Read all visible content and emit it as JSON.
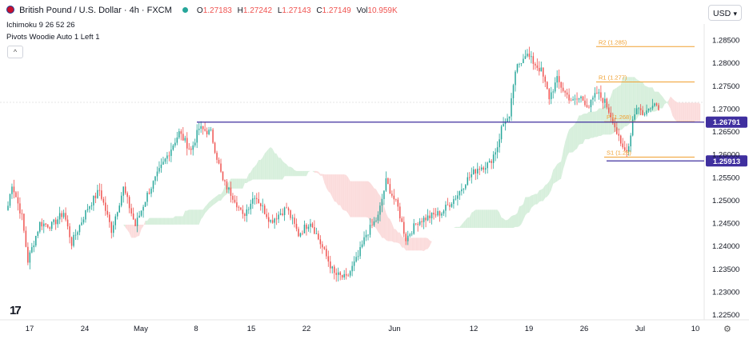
{
  "header": {
    "title": "British Pound / U.S. Dollar · 4h · FXCM",
    "ohlc": [
      {
        "k": "O",
        "v": "1.27183"
      },
      {
        "k": "H",
        "v": "1.27242"
      },
      {
        "k": "L",
        "v": "1.27143"
      },
      {
        "k": "C",
        "v": "1.27149"
      },
      {
        "k": "Vol",
        "v": "10.959K"
      }
    ]
  },
  "indicators": [
    "Ichimoku 9 26 52 26",
    "Pivots Woodie Auto 1 Left 1"
  ],
  "collapse_label": "^",
  "currency_label": "USD",
  "colors": {
    "up": "#26a69a",
    "down": "#ef5350",
    "horizontal_line": "#3f2f9f",
    "pivot": "#f0a030",
    "cloud_bull": "#d7efdc",
    "cloud_bear": "#fbdcdc"
  },
  "chart_data": {
    "type": "candlestick",
    "symbol": "GBPUSD",
    "timeframe": "4h",
    "x_ticks": [
      "17",
      "24",
      "May",
      "8",
      "15",
      "22",
      "Jun",
      "12",
      "19",
      "26",
      "Jul",
      "10"
    ],
    "y_ticks": [
      "1.28500",
      "1.28000",
      "1.27500",
      "1.27000",
      "1.26500",
      "1.26000",
      "1.25500",
      "1.25000",
      "1.24500",
      "1.24000",
      "1.23500",
      "1.23000",
      "1.22500"
    ],
    "ylim": [
      1.2225,
      1.2885
    ],
    "horizontal_lines": [
      {
        "price": 1.26791,
        "label": "1.26791"
      },
      {
        "price": 1.25913,
        "label": "1.25913"
      }
    ],
    "pivots": [
      {
        "name": "R2",
        "label": "R2 (1.285)",
        "value": 1.285
      },
      {
        "name": "R1",
        "label": "R1 (1.277)",
        "value": 1.277
      },
      {
        "name": "P",
        "label": "P (1.268)",
        "value": 1.268
      },
      {
        "name": "S1",
        "label": "S1 (1.26)",
        "value": 1.26
      }
    ],
    "close_anchors": [
      [
        0,
        1.249
      ],
      [
        2,
        1.254
      ],
      [
        7,
        1.2465
      ],
      [
        10,
        1.2365
      ],
      [
        16,
        1.245
      ],
      [
        22,
        1.2445
      ],
      [
        28,
        1.2475
      ],
      [
        32,
        1.2405
      ],
      [
        40,
        1.2485
      ],
      [
        46,
        1.2525
      ],
      [
        52,
        1.2435
      ],
      [
        58,
        1.253
      ],
      [
        64,
        1.2445
      ],
      [
        70,
        1.2515
      ],
      [
        78,
        1.2585
      ],
      [
        86,
        1.2655
      ],
      [
        92,
        1.2615
      ],
      [
        96,
        1.2665
      ],
      [
        102,
        1.2655
      ],
      [
        108,
        1.2545
      ],
      [
        114,
        1.2505
      ],
      [
        118,
        1.2465
      ],
      [
        124,
        1.2515
      ],
      [
        132,
        1.2455
      ],
      [
        140,
        1.2485
      ],
      [
        146,
        1.2425
      ],
      [
        152,
        1.2455
      ],
      [
        158,
        1.2395
      ],
      [
        164,
        1.2335
      ],
      [
        170,
        1.2325
      ],
      [
        176,
        1.2375
      ],
      [
        180,
        1.2425
      ],
      [
        186,
        1.2465
      ],
      [
        190,
        1.2545
      ],
      [
        196,
        1.2485
      ],
      [
        200,
        1.2415
      ],
      [
        206,
        1.2455
      ],
      [
        212,
        1.2465
      ],
      [
        218,
        1.2475
      ],
      [
        226,
        1.2515
      ],
      [
        230,
        1.2545
      ],
      [
        236,
        1.2575
      ],
      [
        242,
        1.2585
      ],
      [
        246,
        1.2625
      ],
      [
        248,
        1.2665
      ],
      [
        250,
        1.2685
      ],
      [
        252,
        1.2685
      ],
      [
        254,
        1.2765
      ],
      [
        256,
        1.2805
      ],
      [
        260,
        1.2835
      ],
      [
        264,
        1.2815
      ],
      [
        268,
        1.2795
      ],
      [
        272,
        1.2735
      ],
      [
        276,
        1.2775
      ],
      [
        280,
        1.2745
      ],
      [
        284,
        1.2725
      ],
      [
        288,
        1.2735
      ],
      [
        292,
        1.2715
      ],
      [
        296,
        1.2745
      ],
      [
        300,
        1.2725
      ],
      [
        304,
        1.2685
      ],
      [
        306,
        1.2655
      ],
      [
        308,
        1.2625
      ],
      [
        310,
        1.2615
      ],
      [
        312,
        1.2625
      ],
      [
        314,
        1.2685
      ],
      [
        316,
        1.2715
      ],
      [
        320,
        1.2695
      ],
      [
        324,
        1.2725
      ],
      [
        327,
        1.2715
      ]
    ]
  }
}
